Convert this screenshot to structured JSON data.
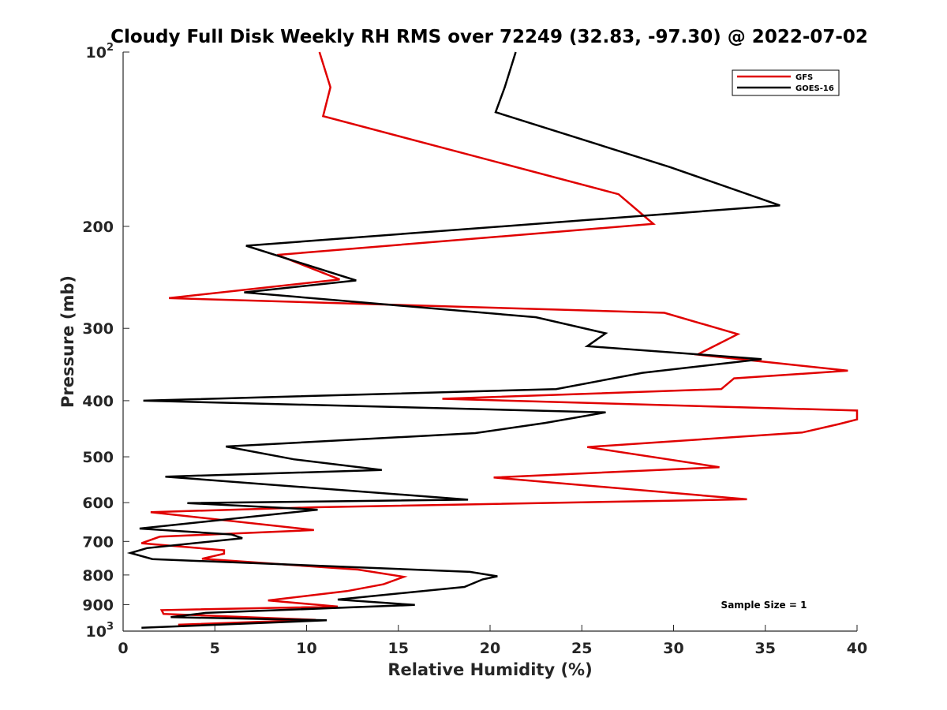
{
  "chart_data": {
    "type": "line",
    "title": "Cloudy Full Disk Weekly RH RMS over 72249 (32.83, -97.30) @ 2022-07-02",
    "xlabel": "Relative Humidity (%)",
    "ylabel": "Pressure (mb)",
    "xlim": [
      0,
      40
    ],
    "ylim": [
      100,
      1000
    ],
    "y_scale": "log",
    "y_reversed": true,
    "x_ticks": [
      "0",
      "5",
      "10",
      "15",
      "20",
      "25",
      "30",
      "35",
      "40"
    ],
    "x_tick_values": [
      0,
      5,
      10,
      15,
      20,
      25,
      30,
      35,
      40
    ],
    "y_tick_values": [
      100,
      200,
      300,
      400,
      500,
      600,
      700,
      800,
      900,
      1000
    ],
    "y_ticks": [
      {
        "base": "10",
        "exp": "2"
      },
      {
        "base": "200",
        "exp": ""
      },
      {
        "base": "300",
        "exp": ""
      },
      {
        "base": "400",
        "exp": ""
      },
      {
        "base": "500",
        "exp": ""
      },
      {
        "base": "600",
        "exp": ""
      },
      {
        "base": "700",
        "exp": ""
      },
      {
        "base": "800",
        "exp": ""
      },
      {
        "base": "900",
        "exp": ""
      },
      {
        "base": "10",
        "exp": "3"
      }
    ],
    "legend_position": "top-right",
    "annotation": "Sample Size = 1",
    "series": [
      {
        "name": "GFS",
        "color": "#e00000",
        "x": [
          10.7,
          11.3,
          10.9,
          27.0,
          28.9,
          8.4,
          11.8,
          2.5,
          29.5,
          33.5,
          31.3,
          39.5,
          33.3,
          32.6,
          17.4,
          40.0,
          40.0,
          39.0,
          37.0,
          25.3,
          32.5,
          20.2,
          34.0,
          10.5,
          1.5,
          10.4,
          2.0,
          1.0,
          5.5,
          5.5,
          4.3,
          12.8,
          15.3,
          14.2,
          12.2,
          7.9,
          11.7,
          2.1,
          2.2,
          10.5,
          3.0
        ],
        "y": [
          100,
          115,
          129,
          176,
          198,
          224,
          247,
          266,
          282,
          307,
          333,
          355,
          366,
          382,
          397,
          416,
          431,
          439,
          454,
          481,
          521,
          543,
          592,
          611,
          623,
          669,
          687,
          705,
          725,
          735,
          750,
          783,
          806,
          830,
          853,
          885,
          907,
          920,
          934,
          956,
          975
        ]
      },
      {
        "name": "GOES-16",
        "color": "#000000",
        "x": [
          21.4,
          20.8,
          20.3,
          29.8,
          35.8,
          6.7,
          12.7,
          6.6,
          22.5,
          26.3,
          25.3,
          34.8,
          28.3,
          23.6,
          1.1,
          26.3,
          23.0,
          19.2,
          5.6,
          9.3,
          14.1,
          2.3,
          18.8,
          3.5,
          10.6,
          0.9,
          5.9,
          6.5,
          1.3,
          0.4,
          1.6,
          18.9,
          20.4,
          19.6,
          18.6,
          11.7,
          15.9,
          4.5,
          2.6,
          11.1,
          1.0
        ],
        "y": [
          100,
          115,
          127,
          158,
          184,
          216,
          248,
          260,
          287,
          306,
          322,
          339,
          358,
          382,
          400,
          419,
          437,
          455,
          480,
          505,
          527,
          541,
          593,
          601,
          617,
          665,
          681,
          691,
          719,
          733,
          751,
          790,
          804,
          814,
          839,
          882,
          901,
          930,
          946,
          958,
          987
        ]
      }
    ]
  }
}
